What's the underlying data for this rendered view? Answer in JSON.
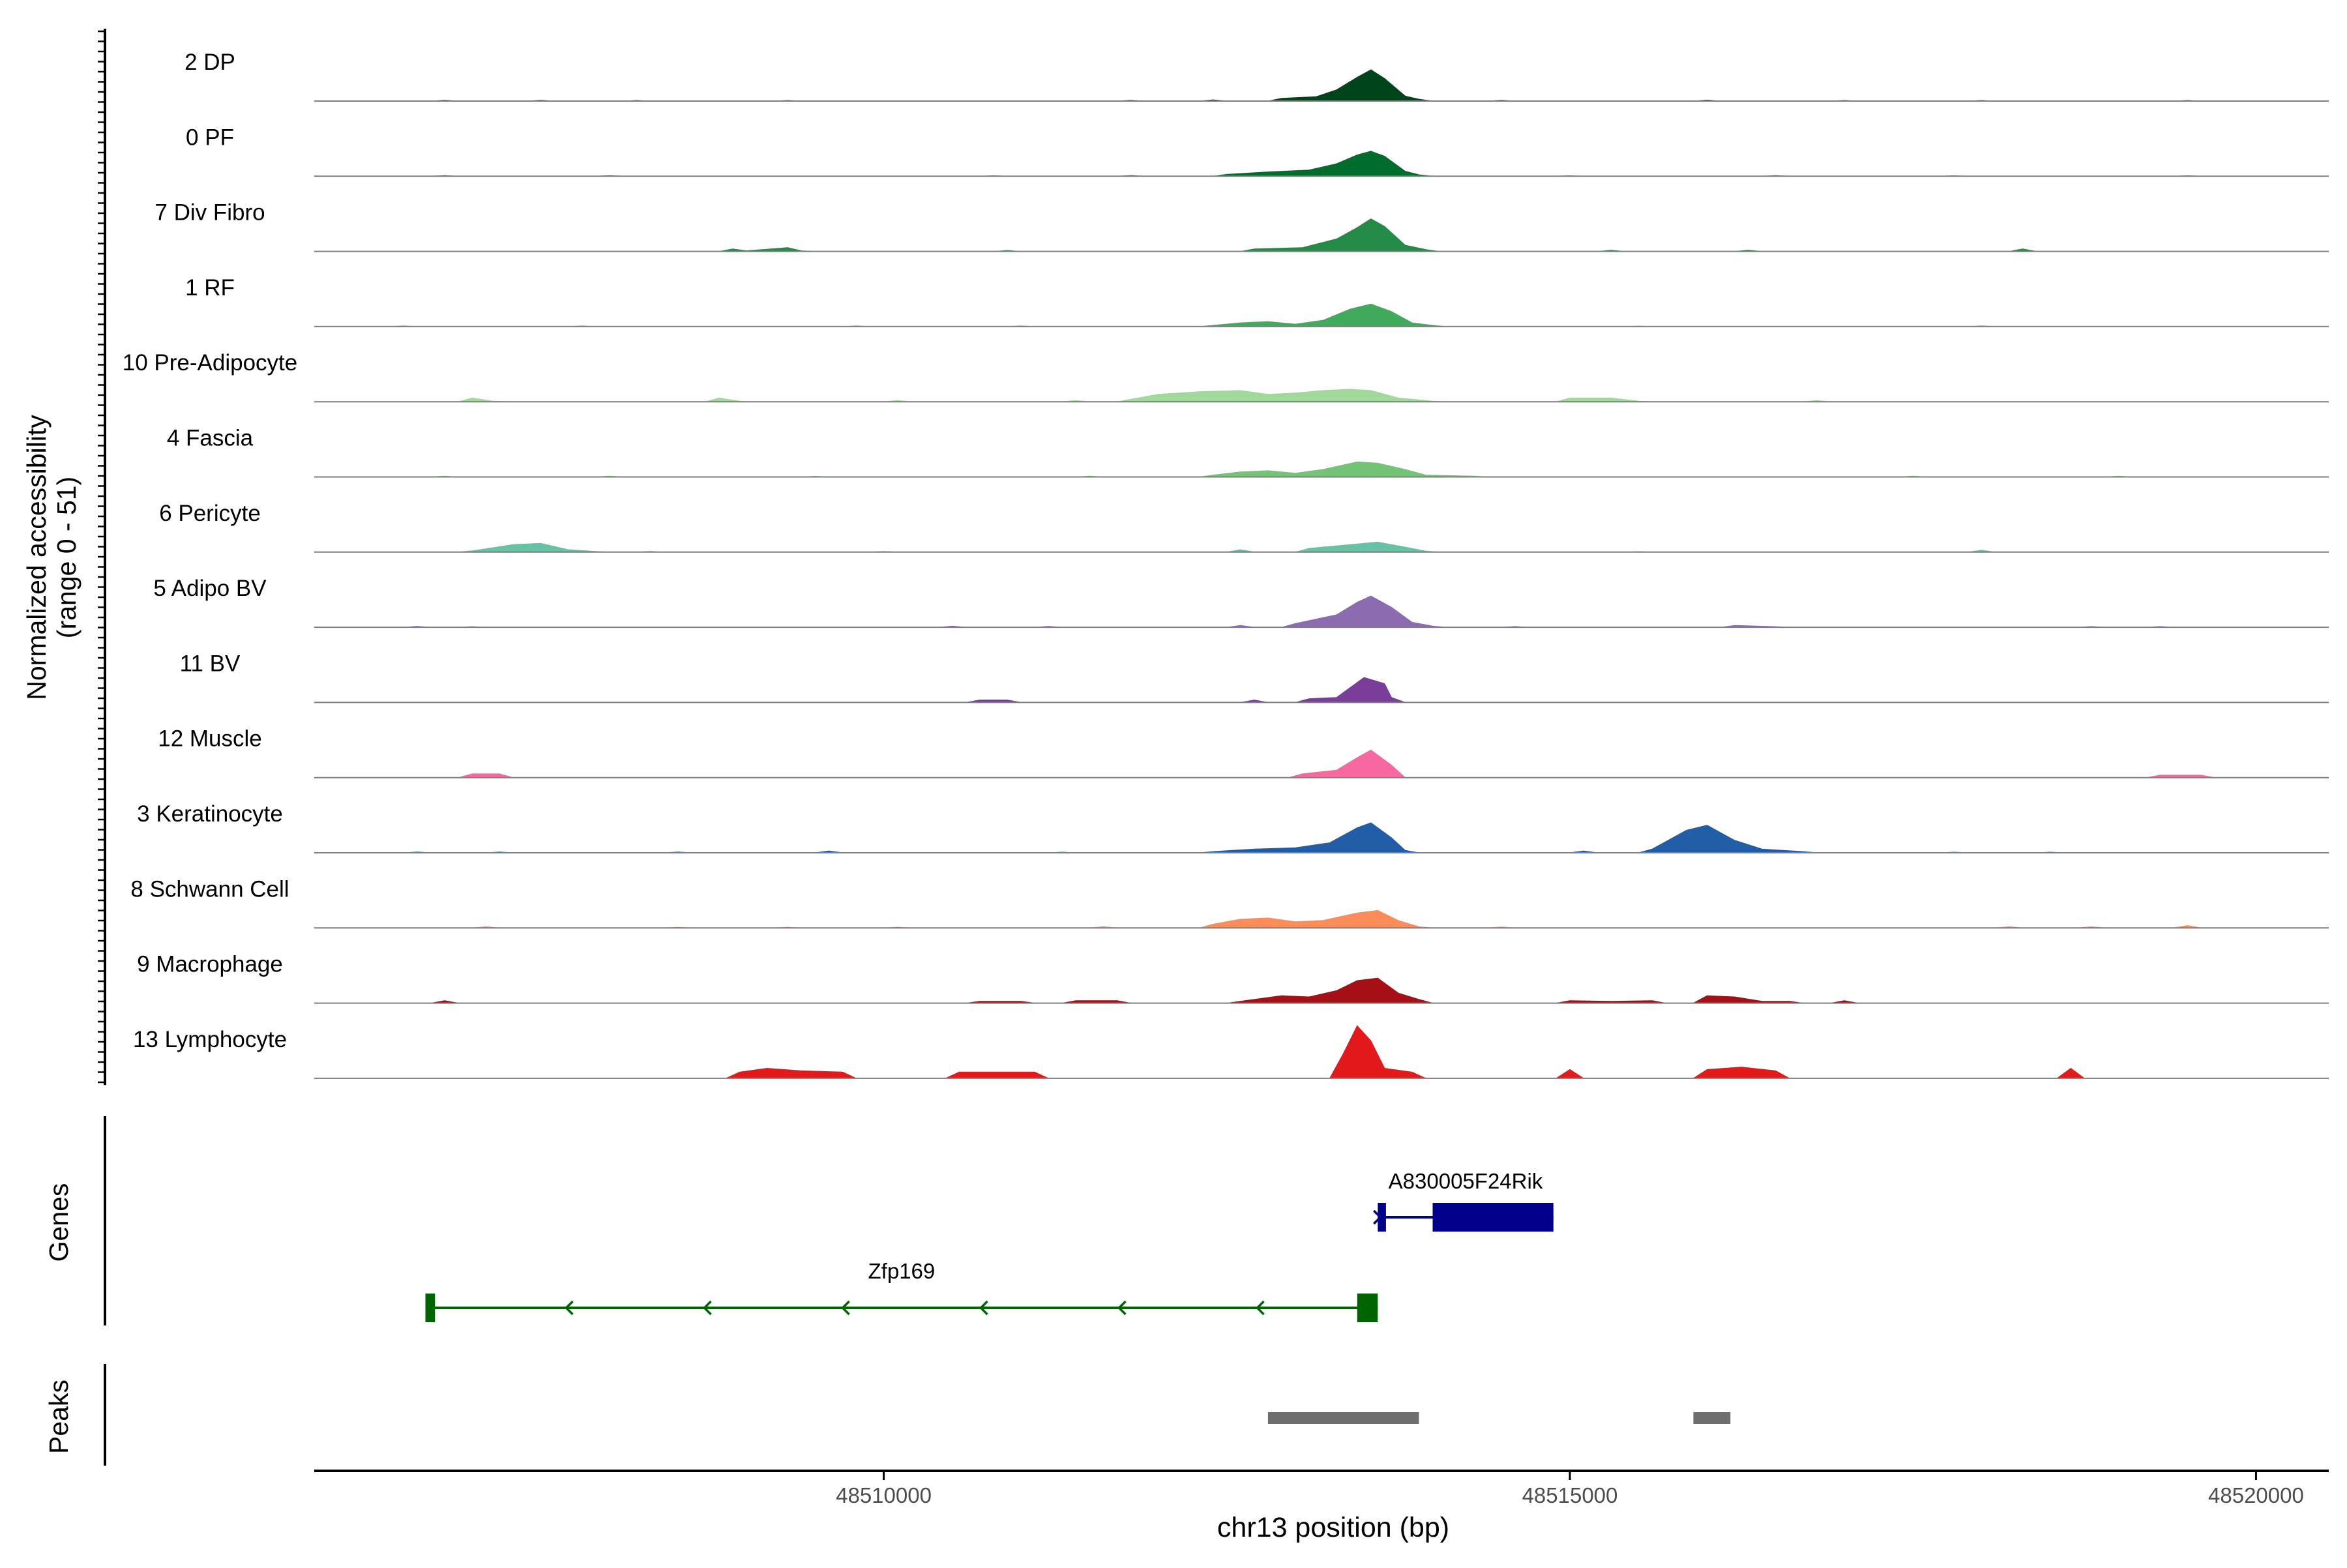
{
  "chart_data": {
    "type": "area",
    "subtype": "genome-coverage-track",
    "chromosome": "chr13",
    "xlabel": "chr13 position (bp)",
    "x_ticks": [
      48510000,
      48515000,
      48520000
    ],
    "xlim": [
      48505850,
      48520530
    ],
    "y_panel_labels": {
      "coverage": "Normalized accessibility",
      "coverage_range": "(range 0 - 51)",
      "genes": "Genes",
      "peaks": "Peaks"
    },
    "ylim": [
      0,
      51
    ],
    "grid": false,
    "legend": "none",
    "baseline_color": "#7f7f7f",
    "series": [
      {
        "name": "2 DP",
        "color": "#00441b",
        "values": [
          [
            48506800,
            0.6
          ],
          [
            48507500,
            0.7
          ],
          [
            48508200,
            0.5
          ],
          [
            48509300,
            0.5
          ],
          [
            48511800,
            0.6
          ],
          [
            48512400,
            1.0
          ],
          [
            48512900,
            2.2
          ],
          [
            48513150,
            3.5
          ],
          [
            48513300,
            9
          ],
          [
            48513450,
            19
          ],
          [
            48513550,
            25
          ],
          [
            48513650,
            18
          ],
          [
            48513800,
            4
          ],
          [
            48513900,
            1.5
          ],
          [
            48514500,
            0.6
          ],
          [
            48516000,
            0.8
          ],
          [
            48517000,
            0.5
          ],
          [
            48518000,
            0.5
          ],
          [
            48519500,
            0.5
          ]
        ]
      },
      {
        "name": "0 PF",
        "color": "#006d2c",
        "values": [
          [
            48506800,
            0.5
          ],
          [
            48508000,
            0.5
          ],
          [
            48510800,
            0.4
          ],
          [
            48511800,
            0.6
          ],
          [
            48512500,
            1.5
          ],
          [
            48512800,
            3.5
          ],
          [
            48513100,
            5
          ],
          [
            48513300,
            10
          ],
          [
            48513450,
            17
          ],
          [
            48513550,
            20
          ],
          [
            48513650,
            16
          ],
          [
            48513800,
            4
          ],
          [
            48513900,
            1.2
          ],
          [
            48515000,
            0.4
          ],
          [
            48516500,
            0.5
          ],
          [
            48517800,
            0.4
          ],
          [
            48519500,
            0.4
          ]
        ]
      },
      {
        "name": "7 Div Fibro",
        "color": "#238b45",
        "values": [
          [
            48508900,
            2
          ],
          [
            48509000,
            0.5
          ],
          [
            48509300,
            3
          ],
          [
            48509400,
            0.5
          ],
          [
            48510900,
            0.8
          ],
          [
            48512700,
            2
          ],
          [
            48513050,
            3
          ],
          [
            48513300,
            10
          ],
          [
            48513450,
            19
          ],
          [
            48513550,
            26
          ],
          [
            48513650,
            20
          ],
          [
            48513800,
            5
          ],
          [
            48513950,
            1.5
          ],
          [
            48515300,
            1
          ],
          [
            48516300,
            1
          ],
          [
            48518300,
            2
          ]
        ]
      },
      {
        "name": "1 RF",
        "color": "#41ab5d",
        "values": [
          [
            48506500,
            0.5
          ],
          [
            48507800,
            0.5
          ],
          [
            48509800,
            0.5
          ],
          [
            48511000,
            0.5
          ],
          [
            48512400,
            1
          ],
          [
            48512600,
            3
          ],
          [
            48512800,
            4
          ],
          [
            48513000,
            2
          ],
          [
            48513200,
            5
          ],
          [
            48513400,
            14
          ],
          [
            48513550,
            18
          ],
          [
            48513700,
            12
          ],
          [
            48513850,
            3
          ],
          [
            48514000,
            1
          ],
          [
            48515500,
            0.4
          ],
          [
            48518000,
            0.5
          ]
        ]
      },
      {
        "name": "10 Pre-Adipocyte",
        "color": "#a1d99b",
        "values": [
          [
            48507000,
            3
          ],
          [
            48507150,
            0.5
          ],
          [
            48508800,
            3
          ],
          [
            48508950,
            0.5
          ],
          [
            48510100,
            1
          ],
          [
            48511400,
            1
          ],
          [
            48511800,
            2
          ],
          [
            48512000,
            6
          ],
          [
            48512300,
            8
          ],
          [
            48512600,
            9
          ],
          [
            48512800,
            6
          ],
          [
            48513000,
            7
          ],
          [
            48513200,
            9
          ],
          [
            48513400,
            10
          ],
          [
            48513550,
            9
          ],
          [
            48513750,
            3
          ],
          [
            48514000,
            0.5
          ],
          [
            48515000,
            3
          ],
          [
            48515300,
            3
          ],
          [
            48515500,
            0.5
          ],
          [
            48516800,
            1
          ]
        ]
      },
      {
        "name": "4 Fascia",
        "color": "#74c476",
        "values": [
          [
            48506800,
            0.6
          ],
          [
            48508000,
            0.6
          ],
          [
            48509500,
            0.5
          ],
          [
            48511500,
            0.6
          ],
          [
            48512400,
            1.5
          ],
          [
            48512600,
            4
          ],
          [
            48512800,
            5
          ],
          [
            48513000,
            3
          ],
          [
            48513200,
            6
          ],
          [
            48513450,
            12
          ],
          [
            48513600,
            11
          ],
          [
            48513800,
            6
          ],
          [
            48513950,
            1.5
          ],
          [
            48514300,
            0.6
          ],
          [
            48517500,
            0.6
          ],
          [
            48519000,
            0.6
          ]
        ]
      },
      {
        "name": "6 Pericyte",
        "color": "#66c2a4",
        "values": [
          [
            48507000,
            1
          ],
          [
            48507300,
            6
          ],
          [
            48507500,
            7
          ],
          [
            48507700,
            2
          ],
          [
            48507900,
            0.5
          ],
          [
            48508300,
            0.6
          ],
          [
            48510000,
            0.5
          ],
          [
            48512600,
            2
          ],
          [
            48513100,
            3
          ],
          [
            48513400,
            6
          ],
          [
            48513600,
            8
          ],
          [
            48513800,
            4
          ],
          [
            48513950,
            0.8
          ],
          [
            48515500,
            0.4
          ],
          [
            48518000,
            1.5
          ]
        ]
      },
      {
        "name": "5 Adipo BV",
        "color": "#8c6bb1",
        "values": [
          [
            48506600,
            0.8
          ],
          [
            48507000,
            0.5
          ],
          [
            48510500,
            1
          ],
          [
            48511200,
            0.8
          ],
          [
            48512600,
            1.5
          ],
          [
            48513000,
            3
          ],
          [
            48513300,
            10
          ],
          [
            48513450,
            20
          ],
          [
            48513550,
            25
          ],
          [
            48513700,
            16
          ],
          [
            48513850,
            4
          ],
          [
            48514000,
            1
          ],
          [
            48514600,
            0.6
          ],
          [
            48516200,
            1.5
          ],
          [
            48516500,
            0.5
          ],
          [
            48518800,
            0.6
          ],
          [
            48519300,
            0.6
          ]
        ]
      },
      {
        "name": "11 BV",
        "color": "#7a3d9a",
        "values": [
          [
            48510700,
            2
          ],
          [
            48510900,
            2
          ],
          [
            48512700,
            2
          ],
          [
            48513100,
            3
          ],
          [
            48513300,
            4
          ],
          [
            48513500,
            20
          ],
          [
            48513650,
            15
          ],
          [
            48513700,
            4
          ]
        ]
      },
      {
        "name": "12 Muscle",
        "color": "#f768a1",
        "values": [
          [
            48507000,
            3
          ],
          [
            48507200,
            3
          ],
          [
            48513050,
            3
          ],
          [
            48513300,
            6
          ],
          [
            48513450,
            16
          ],
          [
            48513550,
            22
          ],
          [
            48513700,
            10
          ],
          [
            48519300,
            2
          ],
          [
            48519600,
            2
          ]
        ]
      },
      {
        "name": "3 Keratinocyte",
        "color": "#225ea8",
        "values": [
          [
            48506600,
            0.6
          ],
          [
            48507200,
            0.6
          ],
          [
            48508500,
            0.6
          ],
          [
            48509600,
            1.5
          ],
          [
            48511300,
            0.5
          ],
          [
            48512400,
            1
          ],
          [
            48512700,
            3
          ],
          [
            48513000,
            4
          ],
          [
            48513250,
            8
          ],
          [
            48513450,
            20
          ],
          [
            48513550,
            24
          ],
          [
            48513700,
            12
          ],
          [
            48513800,
            2
          ],
          [
            48515100,
            1.5
          ],
          [
            48515600,
            3
          ],
          [
            48515850,
            18
          ],
          [
            48516000,
            22
          ],
          [
            48516200,
            10
          ],
          [
            48516400,
            3
          ],
          [
            48516700,
            1
          ],
          [
            48517800,
            0.5
          ],
          [
            48518500,
            0.5
          ]
        ]
      },
      {
        "name": "8 Schwann Cell",
        "color": "#fc8d59",
        "values": [
          [
            48507100,
            1
          ],
          [
            48508500,
            0.5
          ],
          [
            48509300,
            0.6
          ],
          [
            48510100,
            0.6
          ],
          [
            48511600,
            1
          ],
          [
            48512400,
            3
          ],
          [
            48512600,
            7
          ],
          [
            48512800,
            8
          ],
          [
            48513000,
            5
          ],
          [
            48513200,
            6
          ],
          [
            48513450,
            12
          ],
          [
            48513600,
            14
          ],
          [
            48513750,
            6
          ],
          [
            48513900,
            1
          ],
          [
            48514500,
            0.8
          ],
          [
            48518200,
            1
          ],
          [
            48518800,
            1
          ],
          [
            48519500,
            2
          ]
        ]
      },
      {
        "name": "9 Macrophage",
        "color": "#a50f15",
        "values": [
          [
            48506800,
            2
          ],
          [
            48510700,
            1.5
          ],
          [
            48511000,
            1.5
          ],
          [
            48511400,
            2
          ],
          [
            48511700,
            2
          ],
          [
            48512600,
            1.5
          ],
          [
            48512900,
            6
          ],
          [
            48513100,
            5
          ],
          [
            48513300,
            10
          ],
          [
            48513450,
            18
          ],
          [
            48513600,
            20
          ],
          [
            48513750,
            8
          ],
          [
            48513900,
            3
          ],
          [
            48515000,
            2
          ],
          [
            48515300,
            1.5
          ],
          [
            48515600,
            2
          ],
          [
            48516000,
            6
          ],
          [
            48516200,
            5
          ],
          [
            48516400,
            1.5
          ],
          [
            48516600,
            1.5
          ],
          [
            48517000,
            2
          ]
        ]
      },
      {
        "name": "13 Lymphocyte",
        "color": "#e31a1c",
        "values": [
          [
            48508950,
            5
          ],
          [
            48509150,
            8
          ],
          [
            48509400,
            6
          ],
          [
            48509700,
            5
          ],
          [
            48510550,
            5
          ],
          [
            48510700,
            5
          ],
          [
            48510950,
            5
          ],
          [
            48511100,
            5
          ],
          [
            48513350,
            20
          ],
          [
            48513450,
            42
          ],
          [
            48513550,
            30
          ],
          [
            48513650,
            8
          ],
          [
            48513850,
            5
          ],
          [
            48515000,
            7
          ],
          [
            48516000,
            7
          ],
          [
            48516250,
            9
          ],
          [
            48516500,
            6
          ],
          [
            48518650,
            8
          ]
        ]
      }
    ],
    "genes": [
      {
        "name": "A830005F24Rik",
        "strand": "+",
        "color": "#00008b",
        "start": 48513600,
        "end": 48514880,
        "exons": [
          [
            48513600,
            48513660
          ],
          [
            48514000,
            48514880
          ]
        ]
      },
      {
        "name": "Zfp169",
        "strand": "-",
        "color": "#006400",
        "start": 48506660,
        "end": 48513600,
        "exons": [
          [
            48506660,
            48506730
          ],
          [
            48513450,
            48513600
          ]
        ]
      }
    ],
    "peaks": [
      {
        "start": 48512800,
        "end": 48513900
      },
      {
        "start": 48515900,
        "end": 48516170
      }
    ]
  }
}
